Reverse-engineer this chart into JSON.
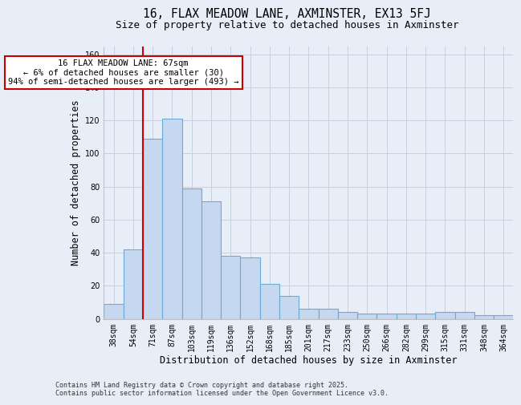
{
  "title": "16, FLAX MEADOW LANE, AXMINSTER, EX13 5FJ",
  "subtitle": "Size of property relative to detached houses in Axminster",
  "xlabel": "Distribution of detached houses by size in Axminster",
  "ylabel": "Number of detached properties",
  "categories": [
    "38sqm",
    "54sqm",
    "71sqm",
    "87sqm",
    "103sqm",
    "119sqm",
    "136sqm",
    "152sqm",
    "168sqm",
    "185sqm",
    "201sqm",
    "217sqm",
    "233sqm",
    "250sqm",
    "266sqm",
    "282sqm",
    "299sqm",
    "315sqm",
    "331sqm",
    "348sqm",
    "364sqm"
  ],
  "values": [
    9,
    42,
    109,
    121,
    79,
    71,
    38,
    37,
    21,
    14,
    6,
    6,
    4,
    3,
    3,
    3,
    3,
    4,
    4,
    2,
    2
  ],
  "bar_color": "#c5d8f0",
  "bar_edge_color": "#6aaad4",
  "background_color": "#e8eef8",
  "grid_color": "#d0d8e8",
  "annotation_text": "16 FLAX MEADOW LANE: 67sqm\n← 6% of detached houses are smaller (30)\n94% of semi-detached houses are larger (493) →",
  "annotation_box_color": "#ffffff",
  "annotation_box_edge_color": "#cc0000",
  "vline_color": "#cc0000",
  "ylim": [
    0,
    165
  ],
  "yticks": [
    0,
    20,
    40,
    60,
    80,
    100,
    120,
    140,
    160
  ],
  "footnote": "Contains HM Land Registry data © Crown copyright and database right 2025.\nContains public sector information licensed under the Open Government Licence v3.0.",
  "title_fontsize": 10.5,
  "subtitle_fontsize": 9,
  "ylabel_fontsize": 8.5,
  "xlabel_fontsize": 8.5,
  "tick_fontsize": 7,
  "annot_fontsize": 7.5,
  "footnote_fontsize": 6
}
